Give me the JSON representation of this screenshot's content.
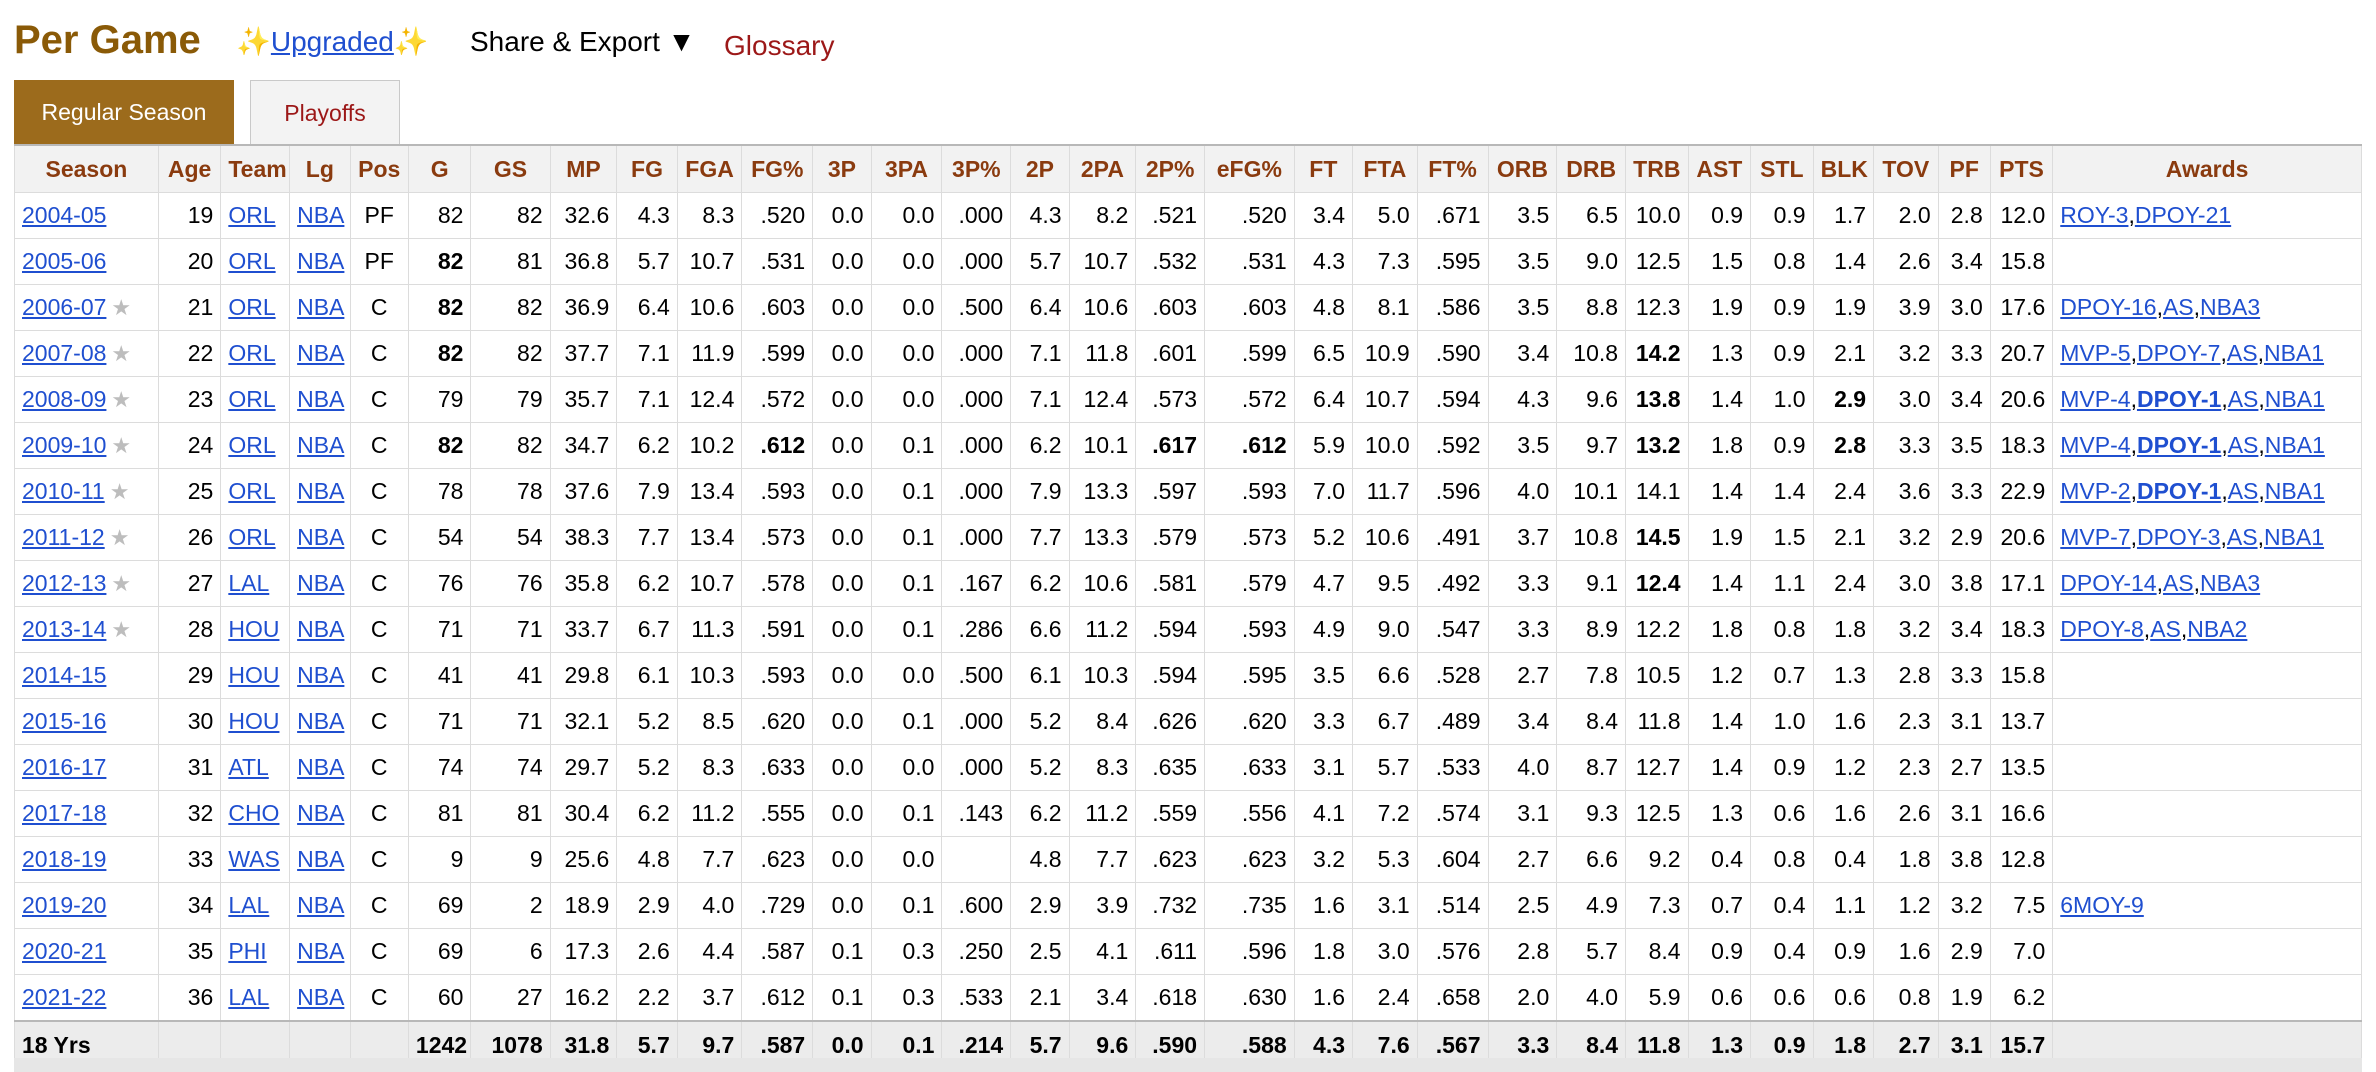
{
  "header": {
    "title": "Per Game",
    "sparkle_left": "✨",
    "upgraded_label": "Upgraded",
    "sparkle_right": "✨",
    "share_label": "Share & Export ▼",
    "glossary_label": "Glossary"
  },
  "tabs": [
    {
      "label": "Regular Season",
      "active": true
    },
    {
      "label": "Playoffs",
      "active": false
    }
  ],
  "columns": [
    "Season",
    "Age",
    "Team",
    "Lg",
    "Pos",
    "G",
    "GS",
    "MP",
    "FG",
    "FGA",
    "FG%",
    "3P",
    "3PA",
    "3P%",
    "2P",
    "2PA",
    "2P%",
    "eFG%",
    "FT",
    "FTA",
    "FT%",
    "ORB",
    "DRB",
    "TRB",
    "AST",
    "STL",
    "BLK",
    "TOV",
    "PF",
    "PTS",
    "Awards"
  ],
  "rows": [
    {
      "season": "2004-05",
      "star": false,
      "cells": [
        "19",
        "ORL",
        "NBA",
        "PF",
        "82",
        "82",
        "32.6",
        "4.3",
        "8.3",
        ".520",
        "0.0",
        "0.0",
        ".000",
        "4.3",
        "8.2",
        ".521",
        ".520",
        "3.4",
        "5.0",
        ".671",
        "3.5",
        "6.5",
        "10.0",
        "0.9",
        "0.9",
        "1.7",
        "2.0",
        "2.8",
        "12.0"
      ],
      "bold": [],
      "awards": [
        {
          "text": "ROY-3",
          "bold": false
        },
        {
          "text": "DPOY-21",
          "bold": false
        }
      ]
    },
    {
      "season": "2005-06",
      "star": false,
      "cells": [
        "20",
        "ORL",
        "NBA",
        "PF",
        "82",
        "81",
        "36.8",
        "5.7",
        "10.7",
        ".531",
        "0.0",
        "0.0",
        ".000",
        "5.7",
        "10.7",
        ".532",
        ".531",
        "4.3",
        "7.3",
        ".595",
        "3.5",
        "9.0",
        "12.5",
        "1.5",
        "0.8",
        "1.4",
        "2.6",
        "3.4",
        "15.8"
      ],
      "bold": [
        4
      ],
      "awards": []
    },
    {
      "season": "2006-07",
      "star": true,
      "cells": [
        "21",
        "ORL",
        "NBA",
        "C",
        "82",
        "82",
        "36.9",
        "6.4",
        "10.6",
        ".603",
        "0.0",
        "0.0",
        ".500",
        "6.4",
        "10.6",
        ".603",
        ".603",
        "4.8",
        "8.1",
        ".586",
        "3.5",
        "8.8",
        "12.3",
        "1.9",
        "0.9",
        "1.9",
        "3.9",
        "3.0",
        "17.6"
      ],
      "bold": [
        4
      ],
      "awards": [
        {
          "text": "DPOY-16",
          "bold": false
        },
        {
          "text": "AS",
          "bold": false
        },
        {
          "text": "NBA3",
          "bold": false
        }
      ]
    },
    {
      "season": "2007-08",
      "star": true,
      "cells": [
        "22",
        "ORL",
        "NBA",
        "C",
        "82",
        "82",
        "37.7",
        "7.1",
        "11.9",
        ".599",
        "0.0",
        "0.0",
        ".000",
        "7.1",
        "11.8",
        ".601",
        ".599",
        "6.5",
        "10.9",
        ".590",
        "3.4",
        "10.8",
        "14.2",
        "1.3",
        "0.9",
        "2.1",
        "3.2",
        "3.3",
        "20.7"
      ],
      "bold": [
        4,
        22
      ],
      "awards": [
        {
          "text": "MVP-5",
          "bold": false
        },
        {
          "text": "DPOY-7",
          "bold": false
        },
        {
          "text": "AS",
          "bold": false
        },
        {
          "text": "NBA1",
          "bold": false
        }
      ]
    },
    {
      "season": "2008-09",
      "star": true,
      "cells": [
        "23",
        "ORL",
        "NBA",
        "C",
        "79",
        "79",
        "35.7",
        "7.1",
        "12.4",
        ".572",
        "0.0",
        "0.0",
        ".000",
        "7.1",
        "12.4",
        ".573",
        ".572",
        "6.4",
        "10.7",
        ".594",
        "4.3",
        "9.6",
        "13.8",
        "1.4",
        "1.0",
        "2.9",
        "3.0",
        "3.4",
        "20.6"
      ],
      "bold": [
        22,
        25
      ],
      "awards": [
        {
          "text": "MVP-4",
          "bold": false
        },
        {
          "text": "DPOY-1",
          "bold": true
        },
        {
          "text": "AS",
          "bold": false
        },
        {
          "text": "NBA1",
          "bold": false
        }
      ]
    },
    {
      "season": "2009-10",
      "star": true,
      "cells": [
        "24",
        "ORL",
        "NBA",
        "C",
        "82",
        "82",
        "34.7",
        "6.2",
        "10.2",
        ".612",
        "0.0",
        "0.1",
        ".000",
        "6.2",
        "10.1",
        ".617",
        ".612",
        "5.9",
        "10.0",
        ".592",
        "3.5",
        "9.7",
        "13.2",
        "1.8",
        "0.9",
        "2.8",
        "3.3",
        "3.5",
        "18.3"
      ],
      "bold": [
        4,
        9,
        15,
        16,
        22,
        25
      ],
      "awards": [
        {
          "text": "MVP-4",
          "bold": false
        },
        {
          "text": "DPOY-1",
          "bold": true
        },
        {
          "text": "AS",
          "bold": false
        },
        {
          "text": "NBA1",
          "bold": false
        }
      ]
    },
    {
      "season": "2010-11",
      "star": true,
      "cells": [
        "25",
        "ORL",
        "NBA",
        "C",
        "78",
        "78",
        "37.6",
        "7.9",
        "13.4",
        ".593",
        "0.0",
        "0.1",
        ".000",
        "7.9",
        "13.3",
        ".597",
        ".593",
        "7.0",
        "11.7",
        ".596",
        "4.0",
        "10.1",
        "14.1",
        "1.4",
        "1.4",
        "2.4",
        "3.6",
        "3.3",
        "22.9"
      ],
      "bold": [],
      "awards": [
        {
          "text": "MVP-2",
          "bold": false
        },
        {
          "text": "DPOY-1",
          "bold": true
        },
        {
          "text": "AS",
          "bold": false
        },
        {
          "text": "NBA1",
          "bold": false
        }
      ]
    },
    {
      "season": "2011-12",
      "star": true,
      "cells": [
        "26",
        "ORL",
        "NBA",
        "C",
        "54",
        "54",
        "38.3",
        "7.7",
        "13.4",
        ".573",
        "0.0",
        "0.1",
        ".000",
        "7.7",
        "13.3",
        ".579",
        ".573",
        "5.2",
        "10.6",
        ".491",
        "3.7",
        "10.8",
        "14.5",
        "1.9",
        "1.5",
        "2.1",
        "3.2",
        "2.9",
        "20.6"
      ],
      "bold": [
        22
      ],
      "awards": [
        {
          "text": "MVP-7",
          "bold": false
        },
        {
          "text": "DPOY-3",
          "bold": false
        },
        {
          "text": "AS",
          "bold": false
        },
        {
          "text": "NBA1",
          "bold": false
        }
      ]
    },
    {
      "season": "2012-13",
      "star": true,
      "cells": [
        "27",
        "LAL",
        "NBA",
        "C",
        "76",
        "76",
        "35.8",
        "6.2",
        "10.7",
        ".578",
        "0.0",
        "0.1",
        ".167",
        "6.2",
        "10.6",
        ".581",
        ".579",
        "4.7",
        "9.5",
        ".492",
        "3.3",
        "9.1",
        "12.4",
        "1.4",
        "1.1",
        "2.4",
        "3.0",
        "3.8",
        "17.1"
      ],
      "bold": [
        22
      ],
      "awards": [
        {
          "text": "DPOY-14",
          "bold": false
        },
        {
          "text": "AS",
          "bold": false
        },
        {
          "text": "NBA3",
          "bold": false
        }
      ]
    },
    {
      "season": "2013-14",
      "star": true,
      "cells": [
        "28",
        "HOU",
        "NBA",
        "C",
        "71",
        "71",
        "33.7",
        "6.7",
        "11.3",
        ".591",
        "0.0",
        "0.1",
        ".286",
        "6.6",
        "11.2",
        ".594",
        ".593",
        "4.9",
        "9.0",
        ".547",
        "3.3",
        "8.9",
        "12.2",
        "1.8",
        "0.8",
        "1.8",
        "3.2",
        "3.4",
        "18.3"
      ],
      "bold": [],
      "awards": [
        {
          "text": "DPOY-8",
          "bold": false
        },
        {
          "text": "AS",
          "bold": false
        },
        {
          "text": "NBA2",
          "bold": false
        }
      ]
    },
    {
      "season": "2014-15",
      "star": false,
      "cells": [
        "29",
        "HOU",
        "NBA",
        "C",
        "41",
        "41",
        "29.8",
        "6.1",
        "10.3",
        ".593",
        "0.0",
        "0.0",
        ".500",
        "6.1",
        "10.3",
        ".594",
        ".595",
        "3.5",
        "6.6",
        ".528",
        "2.7",
        "7.8",
        "10.5",
        "1.2",
        "0.7",
        "1.3",
        "2.8",
        "3.3",
        "15.8"
      ],
      "bold": [],
      "awards": []
    },
    {
      "season": "2015-16",
      "star": false,
      "cells": [
        "30",
        "HOU",
        "NBA",
        "C",
        "71",
        "71",
        "32.1",
        "5.2",
        "8.5",
        ".620",
        "0.0",
        "0.1",
        ".000",
        "5.2",
        "8.4",
        ".626",
        ".620",
        "3.3",
        "6.7",
        ".489",
        "3.4",
        "8.4",
        "11.8",
        "1.4",
        "1.0",
        "1.6",
        "2.3",
        "3.1",
        "13.7"
      ],
      "bold": [],
      "awards": []
    },
    {
      "season": "2016-17",
      "star": false,
      "cells": [
        "31",
        "ATL",
        "NBA",
        "C",
        "74",
        "74",
        "29.7",
        "5.2",
        "8.3",
        ".633",
        "0.0",
        "0.0",
        ".000",
        "5.2",
        "8.3",
        ".635",
        ".633",
        "3.1",
        "5.7",
        ".533",
        "4.0",
        "8.7",
        "12.7",
        "1.4",
        "0.9",
        "1.2",
        "2.3",
        "2.7",
        "13.5"
      ],
      "bold": [],
      "awards": []
    },
    {
      "season": "2017-18",
      "star": false,
      "cells": [
        "32",
        "CHO",
        "NBA",
        "C",
        "81",
        "81",
        "30.4",
        "6.2",
        "11.2",
        ".555",
        "0.0",
        "0.1",
        ".143",
        "6.2",
        "11.2",
        ".559",
        ".556",
        "4.1",
        "7.2",
        ".574",
        "3.1",
        "9.3",
        "12.5",
        "1.3",
        "0.6",
        "1.6",
        "2.6",
        "3.1",
        "16.6"
      ],
      "bold": [],
      "awards": []
    },
    {
      "season": "2018-19",
      "star": false,
      "cells": [
        "33",
        "WAS",
        "NBA",
        "C",
        "9",
        "9",
        "25.6",
        "4.8",
        "7.7",
        ".623",
        "0.0",
        "0.0",
        "",
        "4.8",
        "7.7",
        ".623",
        ".623",
        "3.2",
        "5.3",
        ".604",
        "2.7",
        "6.6",
        "9.2",
        "0.4",
        "0.8",
        "0.4",
        "1.8",
        "3.8",
        "12.8"
      ],
      "bold": [],
      "awards": []
    },
    {
      "season": "2019-20",
      "star": false,
      "cells": [
        "34",
        "LAL",
        "NBA",
        "C",
        "69",
        "2",
        "18.9",
        "2.9",
        "4.0",
        ".729",
        "0.0",
        "0.1",
        ".600",
        "2.9",
        "3.9",
        ".732",
        ".735",
        "1.6",
        "3.1",
        ".514",
        "2.5",
        "4.9",
        "7.3",
        "0.7",
        "0.4",
        "1.1",
        "1.2",
        "3.2",
        "7.5"
      ],
      "bold": [],
      "awards": [
        {
          "text": "6MOY-9",
          "bold": false
        }
      ]
    },
    {
      "season": "2020-21",
      "star": false,
      "cells": [
        "35",
        "PHI",
        "NBA",
        "C",
        "69",
        "6",
        "17.3",
        "2.6",
        "4.4",
        ".587",
        "0.1",
        "0.3",
        ".250",
        "2.5",
        "4.1",
        ".611",
        ".596",
        "1.8",
        "3.0",
        ".576",
        "2.8",
        "5.7",
        "8.4",
        "0.9",
        "0.4",
        "0.9",
        "1.6",
        "2.9",
        "7.0"
      ],
      "bold": [],
      "awards": []
    },
    {
      "season": "2021-22",
      "star": false,
      "cells": [
        "36",
        "LAL",
        "NBA",
        "C",
        "60",
        "27",
        "16.2",
        "2.2",
        "3.7",
        ".612",
        "0.1",
        "0.3",
        ".533",
        "2.1",
        "3.4",
        ".618",
        ".630",
        "1.6",
        "2.4",
        ".658",
        "2.0",
        "4.0",
        "5.9",
        "0.6",
        "0.6",
        "0.6",
        "0.8",
        "1.9",
        "6.2"
      ],
      "bold": [],
      "awards": []
    }
  ],
  "footer": {
    "label": "18 Yrs",
    "cells": [
      "",
      "",
      "",
      "",
      "1242",
      "1078",
      "31.8",
      "5.7",
      "9.7",
      ".587",
      "0.0",
      "0.1",
      ".214",
      "5.7",
      "9.6",
      ".590",
      ".588",
      "4.3",
      "7.6",
      ".567",
      "3.3",
      "8.4",
      "11.8",
      "1.3",
      "0.9",
      "1.8",
      "2.7",
      "3.1",
      "15.7",
      ""
    ]
  },
  "colors": {
    "title": "#8a5a07",
    "tab_active": "#9c6b1c",
    "header_text": "#8a3b0f",
    "link": "#1f4fd0",
    "glossary": "#9c1818"
  }
}
